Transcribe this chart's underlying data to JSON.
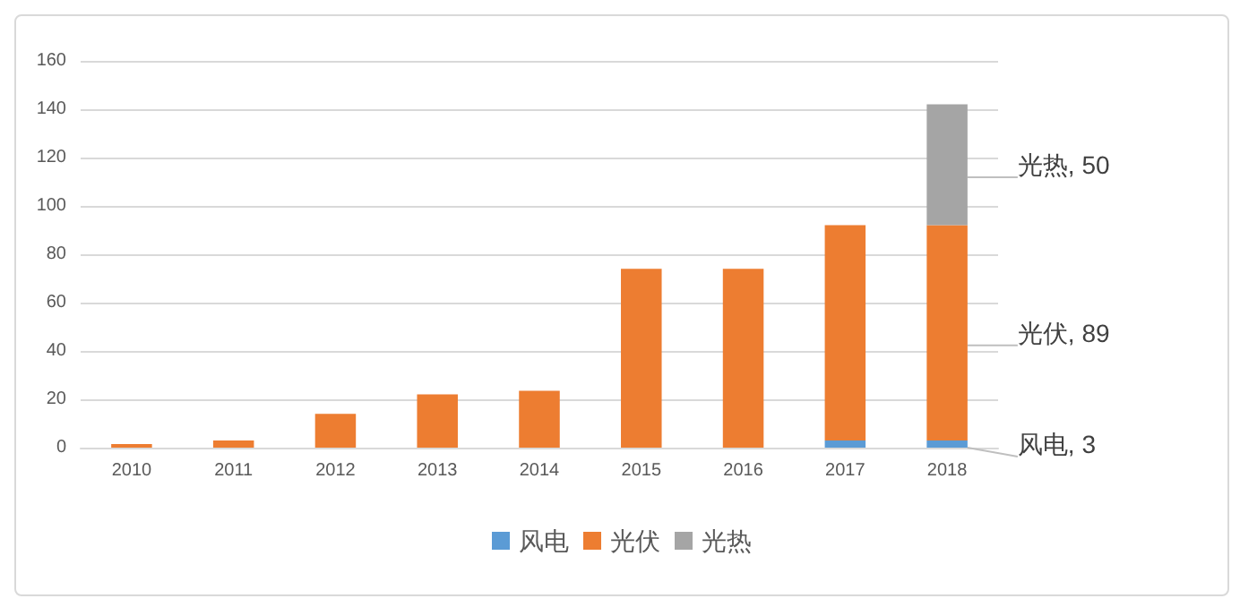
{
  "chart_data": {
    "type": "bar",
    "stacked": true,
    "categories": [
      "2010",
      "2011",
      "2012",
      "2013",
      "2014",
      "2015",
      "2016",
      "2017",
      "2018"
    ],
    "series": [
      {
        "name": "风电",
        "color": "#5b9bd5",
        "values": [
          null,
          null,
          null,
          null,
          null,
          null,
          null,
          3,
          3
        ],
        "value_labels": [
          null,
          null,
          null,
          null,
          null,
          null,
          null,
          null,
          "风电, 3"
        ]
      },
      {
        "name": "光伏",
        "color": "#ed7d31",
        "values": [
          1.5,
          3,
          14,
          22,
          23.5,
          74,
          74,
          89,
          89
        ],
        "value_labels": [
          null,
          null,
          null,
          null,
          null,
          null,
          null,
          null,
          "光伏, 89"
        ]
      },
      {
        "name": "光热",
        "color": "#a5a5a5",
        "values": [
          null,
          null,
          null,
          null,
          null,
          null,
          null,
          null,
          50
        ],
        "value_labels": [
          null,
          null,
          null,
          null,
          null,
          null,
          null,
          null,
          "光热, 50"
        ]
      }
    ],
    "ylim": [
      0,
      160
    ],
    "yticks": [
      0,
      20,
      40,
      60,
      80,
      100,
      120,
      140,
      160
    ],
    "grid": "y",
    "legend": "bottom"
  }
}
